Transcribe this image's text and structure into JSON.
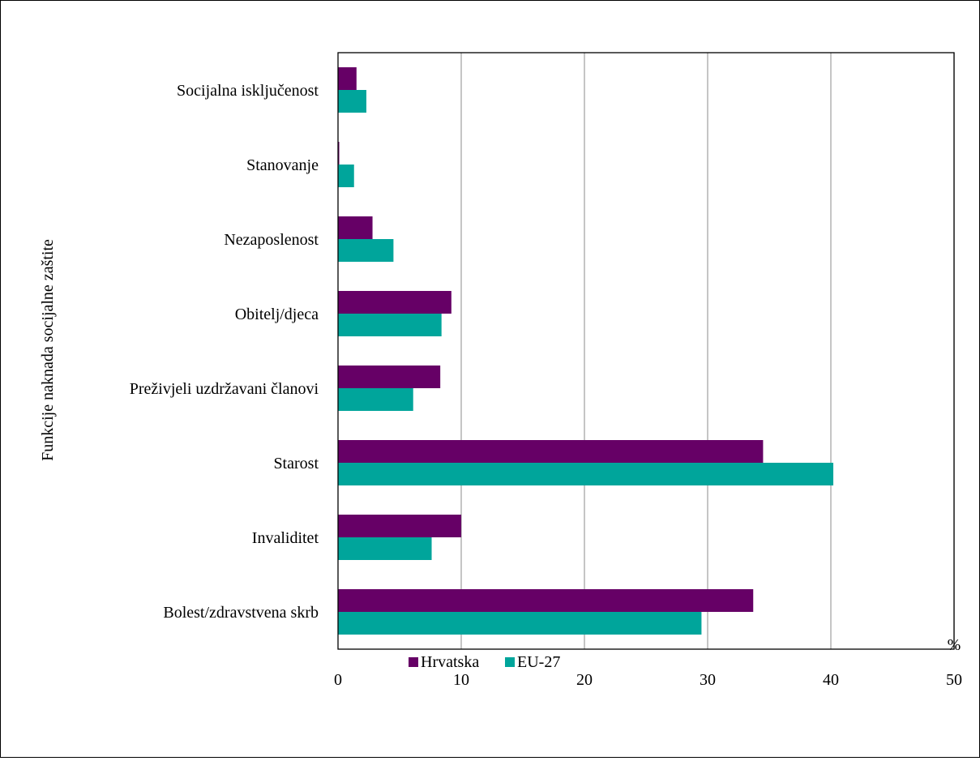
{
  "chart_data": {
    "type": "bar",
    "orientation": "horizontal",
    "title": "",
    "ylabel": "Funkcije naknada socijalne zaštite",
    "xlabel": "%",
    "xlim": [
      0,
      50
    ],
    "x_ticks": [
      "0",
      "10",
      "20",
      "30",
      "40",
      "50"
    ],
    "grid": "vertical",
    "legend_position": "bottom",
    "categories": [
      "Socijalna isključenost",
      "Stanovanje",
      "Nezaposlenost",
      "Obitelj/djeca",
      "Preživjeli uzdržavani članovi",
      "Starost",
      "Invaliditet",
      "Bolest/zdravstvena skrb"
    ],
    "series": [
      {
        "name": "Hrvatska",
        "color": "#660066",
        "values": [
          1.5,
          0.1,
          2.8,
          9.2,
          8.3,
          34.5,
          10.0,
          33.7
        ]
      },
      {
        "name": "EU-27",
        "color": "#00A59B",
        "values": [
          2.3,
          1.3,
          4.5,
          8.4,
          6.1,
          40.2,
          7.6,
          29.5
        ]
      }
    ]
  }
}
